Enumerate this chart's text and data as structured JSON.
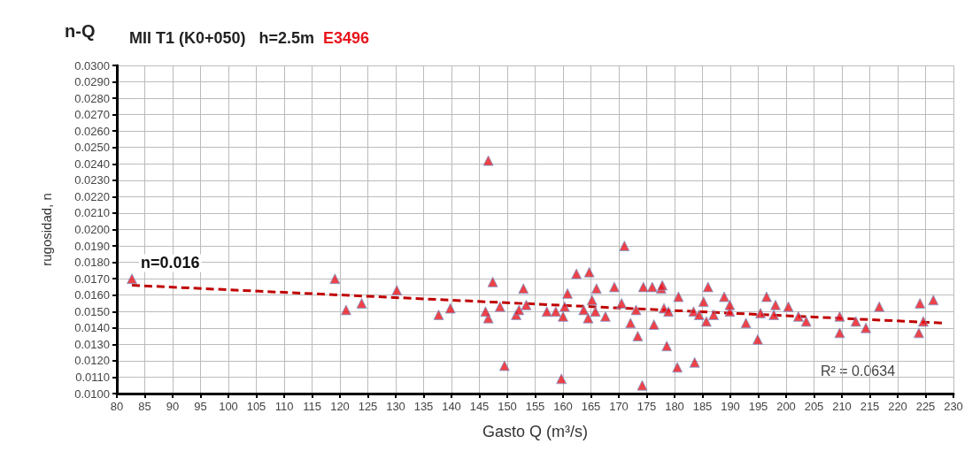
{
  "chart_data": {
    "type": "scatter",
    "title": "n-Q",
    "subtitle": "MII T1 (K0+050)   h=2.5m",
    "xlabel": "Gasto Q (m³/s)",
    "ylabel": "rugosidad, n",
    "annotations": [
      {
        "text": "n=0.016",
        "x": 83,
        "y": 0.0172
      },
      "R² = 0.0634",
      "E3496"
    ],
    "xlim": [
      80,
      230
    ],
    "xticks": [
      80,
      85,
      90,
      95,
      100,
      105,
      110,
      115,
      120,
      125,
      130,
      135,
      140,
      145,
      150,
      155,
      160,
      165,
      170,
      175,
      180,
      185,
      190,
      195,
      200,
      205,
      210,
      215,
      220,
      225,
      230
    ],
    "ylim": [
      0.01,
      0.03
    ],
    "yticks": [
      {
        "value": 0.01,
        "label": "0.0100"
      },
      {
        "value": 0.011,
        "label": "0.0110"
      },
      {
        "value": 0.012,
        "label": "0.0120"
      },
      {
        "value": 0.013,
        "label": "0.0130"
      },
      {
        "value": 0.014,
        "label": "0.0140"
      },
      {
        "value": 0.015,
        "label": "0.0150"
      },
      {
        "value": 0.016,
        "label": "0.0160"
      },
      {
        "value": 0.017,
        "label": "0.0170"
      },
      {
        "value": 0.018,
        "label": "0.0180"
      },
      {
        "value": 0.019,
        "label": "0.0190"
      },
      {
        "value": 0.02,
        "label": "0.0200"
      },
      {
        "value": 0.021,
        "label": "0.0210"
      },
      {
        "value": 0.022,
        "label": "0.0220"
      },
      {
        "value": 0.023,
        "label": "0.0230"
      },
      {
        "value": 0.024,
        "label": "0.0240"
      },
      {
        "value": 0.025,
        "label": "0.0250"
      },
      {
        "value": 0.026,
        "label": "0.0260"
      },
      {
        "value": 0.027,
        "label": "0.0270"
      },
      {
        "value": 0.028,
        "label": "0.0280"
      },
      {
        "value": 0.029,
        "label": "0.0290"
      },
      {
        "value": 0.03,
        "label": "0.0300"
      }
    ],
    "grid": true,
    "series": [
      {
        "type": "scatter",
        "color": "#e8141c",
        "marker": "triangle",
        "x": [
          82.7,
          119.1,
          121.1,
          123.9,
          130.2,
          146.6,
          137.7,
          139.8,
          147.4,
          146.6,
          146.1,
          148.7,
          149.5,
          151.6,
          152.1,
          152.9,
          153.4,
          157.1,
          158.7,
          160,
          159.7,
          160.8,
          160.3,
          162.4,
          164.7,
          163.7,
          164.5,
          165.2,
          166,
          165.8,
          167.6,
          169.2,
          171,
          170.5,
          172.1,
          173.4,
          173.1,
          174.2,
          174.4,
          176.3,
          176,
          177.6,
          178.1,
          178.6,
          177.8,
          178.9,
          180.7,
          180.5,
          183.6,
          183.4,
          184.4,
          185.2,
          186,
          185.7,
          187,
          188.9,
          189.9,
          189.9,
          192.8,
          194.9,
          195.4,
          196.5,
          198.1,
          197.8,
          200.4,
          202.2,
          203.6,
          209.6,
          209.6,
          212.5,
          214.3,
          216.7,
          224,
          226.4,
          224.6,
          223.8
        ],
        "values": [
          0.017,
          0.017,
          0.0151,
          0.0155,
          0.0163,
          0.0242,
          0.0148,
          0.0152,
          0.0168,
          0.0146,
          0.015,
          0.0153,
          0.0117,
          0.0148,
          0.0151,
          0.0164,
          0.0154,
          0.015,
          0.015,
          0.0147,
          0.0109,
          0.0161,
          0.0153,
          0.0173,
          0.0174,
          0.0151,
          0.0146,
          0.0157,
          0.0164,
          0.015,
          0.0147,
          0.0165,
          0.019,
          0.0155,
          0.0143,
          0.0135,
          0.0151,
          0.0105,
          0.0165,
          0.0142,
          0.0165,
          0.0164,
          0.0152,
          0.0129,
          0.0166,
          0.015,
          0.0159,
          0.0116,
          0.0119,
          0.015,
          0.0148,
          0.0156,
          0.0165,
          0.0144,
          0.0148,
          0.0159,
          0.015,
          0.0154,
          0.0143,
          0.0133,
          0.0149,
          0.0159,
          0.0154,
          0.0148,
          0.0153,
          0.0147,
          0.0144,
          0.0147,
          0.0137,
          0.0144,
          0.014,
          0.0153,
          0.0155,
          0.0157,
          0.0144,
          0.0137
        ]
      },
      {
        "type": "line",
        "color": "#c00000",
        "marker": "none",
        "line_style": "dashed",
        "x": [
          82.7,
          228
        ],
        "values": [
          0.0166,
          0.0143
        ]
      }
    ]
  }
}
